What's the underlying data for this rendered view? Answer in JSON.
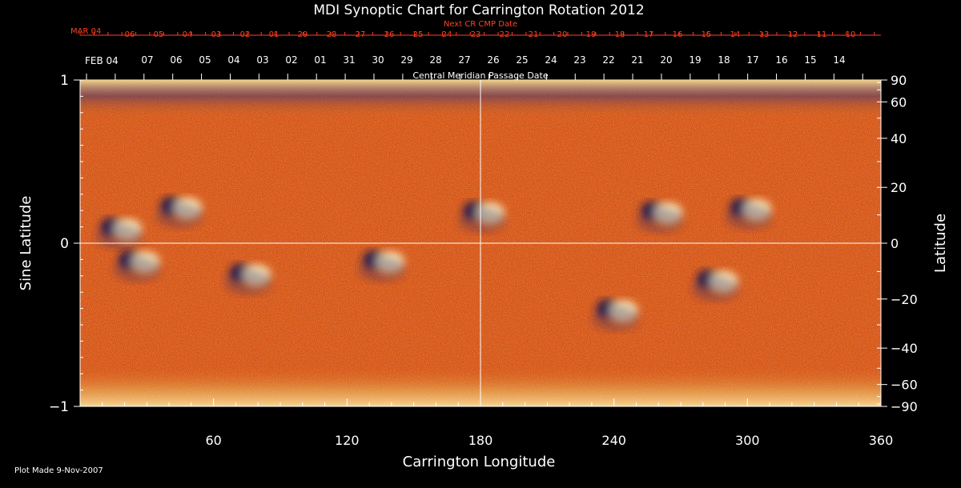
{
  "chart_data": {
    "type": "heatmap",
    "title": "MDI Synoptic Chart for Carrington Rotation 2012",
    "xlabel": "Carrington Longitude",
    "ylabel": "Sine Latitude",
    "ylabel_right": "Latitude",
    "xlim": [
      0,
      360
    ],
    "ylim": [
      -1,
      1
    ],
    "x_ticks": [
      60,
      120,
      180,
      240,
      300,
      360
    ],
    "y_ticks_left": [
      "1",
      "0",
      "−1"
    ],
    "y_ticks_right": [
      "90",
      "60",
      "40",
      "20",
      "0",
      "−20",
      "−40",
      "−60",
      "−90"
    ],
    "right_tick_latitudes": [
      90,
      60,
      40,
      20,
      0,
      -20,
      -40,
      -60,
      -90
    ],
    "top_axis": {
      "label": "Central Meridian Passage Date",
      "start_label": "FEB 04",
      "days": [
        "07",
        "06",
        "05",
        "04",
        "03",
        "02",
        "01",
        "31",
        "30",
        "29",
        "28",
        "27",
        "26",
        "25",
        "24",
        "23",
        "22",
        "21",
        "20",
        "19",
        "18",
        "17",
        "16",
        "15",
        "14"
      ]
    },
    "next_cr_axis": {
      "label": "Next CR CMP Date",
      "start_label": "MAR 04",
      "days": [
        "06",
        "05",
        "04",
        "03",
        "02",
        "01",
        "29",
        "28",
        "27",
        "26",
        "25",
        "24",
        "23",
        "22",
        "21",
        "20",
        "19",
        "18",
        "17",
        "16",
        "15",
        "14",
        "13",
        "12",
        "11",
        "10"
      ]
    },
    "grid": true,
    "grid_lines": {
      "longitude": 180,
      "sine_latitude": 0
    },
    "regions": [
      {
        "lon": 44,
        "sinlat": 0.23,
        "polarity": "mixed"
      },
      {
        "lon": 17,
        "sinlat": 0.1,
        "polarity": "mixed"
      },
      {
        "lon": 25,
        "sinlat": -0.1,
        "polarity": "mixed"
      },
      {
        "lon": 75,
        "sinlat": -0.18,
        "polarity": "mixed"
      },
      {
        "lon": 135,
        "sinlat": -0.1,
        "polarity": "mixed"
      },
      {
        "lon": 180,
        "sinlat": 0.2,
        "polarity": "mixed"
      },
      {
        "lon": 260,
        "sinlat": 0.2,
        "polarity": "mixed"
      },
      {
        "lon": 300,
        "sinlat": 0.22,
        "polarity": "mixed"
      },
      {
        "lon": 285,
        "sinlat": -0.22,
        "polarity": "mixed"
      },
      {
        "lon": 240,
        "sinlat": -0.4,
        "polarity": "mixed"
      }
    ],
    "colors": {
      "background": "#000000",
      "field_base": "#d84a12",
      "positive": "#fff6c8",
      "negative": "#141850",
      "title": "#ffffff",
      "date_axis_red": "#ff4020"
    }
  },
  "footer": {
    "plot_made": "Plot Made  9-Nov-2007"
  }
}
